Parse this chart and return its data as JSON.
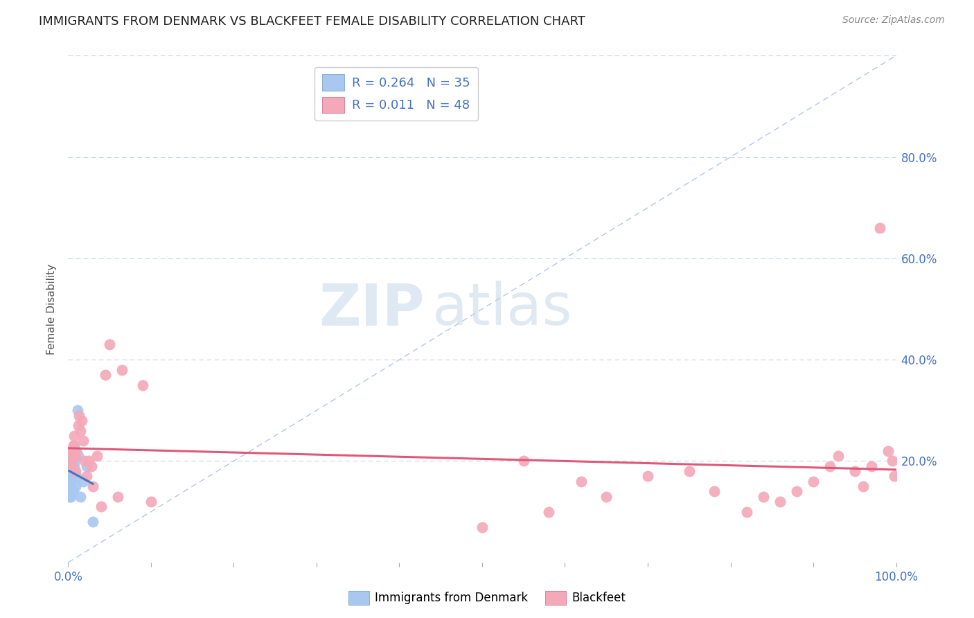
{
  "title": "IMMIGRANTS FROM DENMARK VS BLACKFEET FEMALE DISABILITY CORRELATION CHART",
  "source": "Source: ZipAtlas.com",
  "ylabel": "Female Disability",
  "xlim": [
    0,
    1.0
  ],
  "ylim": [
    0,
    1.0
  ],
  "legend_labels": [
    "Immigrants from Denmark",
    "Blackfeet"
  ],
  "R_denmark": 0.264,
  "N_denmark": 35,
  "R_blackfeet": 0.011,
  "N_blackfeet": 48,
  "color_denmark": "#a8c8f0",
  "color_blackfeet": "#f4a8b8",
  "denmark_trendline_color": "#3a78c9",
  "blackfeet_trendline_color": "#e05878",
  "diagonal_color": "#b0c8e8",
  "watermark_zip": "ZIP",
  "watermark_atlas": "atlas",
  "background_color": "#ffffff",
  "denmark_points_x": [
    0.001,
    0.001,
    0.001,
    0.001,
    0.001,
    0.001,
    0.001,
    0.002,
    0.002,
    0.002,
    0.002,
    0.002,
    0.003,
    0.003,
    0.003,
    0.003,
    0.004,
    0.004,
    0.004,
    0.005,
    0.005,
    0.006,
    0.006,
    0.006,
    0.007,
    0.007,
    0.008,
    0.009,
    0.01,
    0.011,
    0.012,
    0.015,
    0.018,
    0.022,
    0.03
  ],
  "denmark_points_y": [
    0.13,
    0.14,
    0.15,
    0.16,
    0.17,
    0.18,
    0.2,
    0.14,
    0.16,
    0.18,
    0.19,
    0.21,
    0.13,
    0.15,
    0.17,
    0.2,
    0.16,
    0.19,
    0.22,
    0.17,
    0.21,
    0.14,
    0.18,
    0.22,
    0.19,
    0.23,
    0.2,
    0.15,
    0.17,
    0.3,
    0.21,
    0.13,
    0.16,
    0.19,
    0.08
  ],
  "blackfeet_points_x": [
    0.003,
    0.004,
    0.005,
    0.006,
    0.007,
    0.008,
    0.009,
    0.01,
    0.012,
    0.013,
    0.015,
    0.016,
    0.018,
    0.02,
    0.022,
    0.025,
    0.028,
    0.03,
    0.035,
    0.04,
    0.045,
    0.05,
    0.06,
    0.065,
    0.09,
    0.1,
    0.5,
    0.55,
    0.58,
    0.62,
    0.65,
    0.7,
    0.75,
    0.78,
    0.82,
    0.84,
    0.86,
    0.88,
    0.9,
    0.92,
    0.93,
    0.95,
    0.96,
    0.97,
    0.98,
    0.99,
    0.995,
    0.998
  ],
  "blackfeet_points_y": [
    0.22,
    0.2,
    0.19,
    0.23,
    0.25,
    0.21,
    0.18,
    0.22,
    0.27,
    0.29,
    0.26,
    0.28,
    0.24,
    0.2,
    0.17,
    0.2,
    0.19,
    0.15,
    0.21,
    0.11,
    0.37,
    0.43,
    0.13,
    0.38,
    0.35,
    0.12,
    0.07,
    0.2,
    0.1,
    0.16,
    0.13,
    0.17,
    0.18,
    0.14,
    0.1,
    0.13,
    0.12,
    0.14,
    0.16,
    0.19,
    0.21,
    0.18,
    0.15,
    0.19,
    0.66,
    0.22,
    0.2,
    0.17
  ]
}
